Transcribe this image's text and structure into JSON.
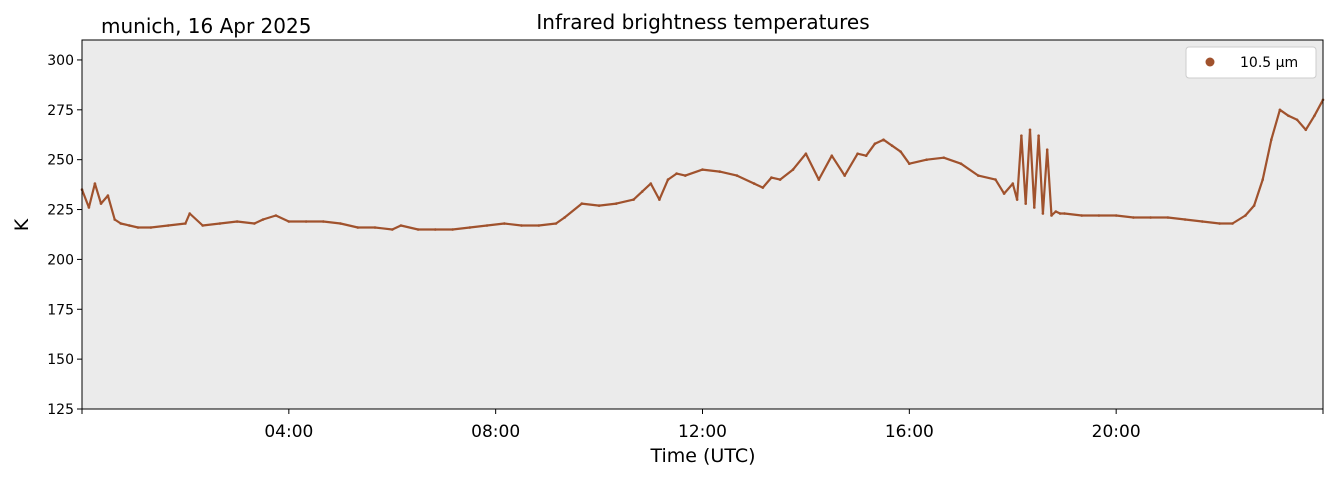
{
  "header": {
    "location_date": "munich, 16 Apr 2025"
  },
  "colors": {
    "series": "#a0522d",
    "plot_background": "#ebebeb"
  },
  "chart_data": {
    "type": "line",
    "title": "Infrared brightness temperatures",
    "xlabel": "Time (UTC)",
    "ylabel": "K",
    "xlim": [
      "00:00",
      "24:00"
    ],
    "ylim": [
      125,
      310
    ],
    "xticks": [
      "04:00",
      "08:00",
      "12:00",
      "16:00",
      "20:00"
    ],
    "yticks": [
      125,
      150,
      175,
      200,
      225,
      250,
      275,
      300
    ],
    "legend_position": "top-right",
    "grid": false,
    "series": [
      {
        "name": "10.5 µm",
        "x": [
          "00:00",
          "00:08",
          "00:15",
          "00:22",
          "00:30",
          "00:38",
          "00:45",
          "00:55",
          "01:05",
          "01:20",
          "01:40",
          "02:00",
          "02:05",
          "02:20",
          "02:40",
          "03:00",
          "03:20",
          "03:30",
          "03:45",
          "04:00",
          "04:20",
          "04:40",
          "05:00",
          "05:20",
          "05:40",
          "06:00",
          "06:10",
          "06:30",
          "06:50",
          "07:10",
          "07:30",
          "07:50",
          "08:10",
          "08:30",
          "08:50",
          "09:10",
          "09:20",
          "09:40",
          "10:00",
          "10:20",
          "10:40",
          "10:50",
          "11:00",
          "11:10",
          "11:20",
          "11:30",
          "11:40",
          "12:00",
          "12:20",
          "12:40",
          "13:00",
          "13:10",
          "13:20",
          "13:30",
          "13:45",
          "14:00",
          "14:15",
          "14:30",
          "14:45",
          "15:00",
          "15:10",
          "15:20",
          "15:30",
          "15:40",
          "15:50",
          "16:00",
          "16:20",
          "16:40",
          "17:00",
          "17:20",
          "17:40",
          "17:50",
          "18:00",
          "18:05",
          "18:10",
          "18:15",
          "18:20",
          "18:25",
          "18:30",
          "18:35",
          "18:40",
          "18:45",
          "18:50",
          "18:55",
          "19:00",
          "19:20",
          "19:40",
          "20:00",
          "20:20",
          "20:40",
          "21:00",
          "21:20",
          "21:40",
          "22:00",
          "22:15",
          "22:30",
          "22:40",
          "22:50",
          "23:00",
          "23:10",
          "23:20",
          "23:30",
          "23:40",
          "23:50",
          "24:00"
        ],
        "y": [
          235,
          226,
          238,
          228,
          232,
          220,
          218,
          217,
          216,
          216,
          217,
          218,
          223,
          217,
          218,
          219,
          218,
          220,
          222,
          219,
          219,
          219,
          218,
          216,
          216,
          215,
          217,
          215,
          215,
          215,
          216,
          217,
          218,
          217,
          217,
          218,
          221,
          228,
          227,
          228,
          230,
          234,
          238,
          230,
          240,
          243,
          242,
          245,
          244,
          242,
          238,
          236,
          241,
          240,
          245,
          253,
          240,
          252,
          242,
          253,
          252,
          258,
          260,
          257,
          254,
          248,
          250,
          251,
          248,
          242,
          240,
          233,
          238,
          230,
          262,
          228,
          265,
          226,
          262,
          223,
          255,
          222,
          224,
          223,
          223,
          222,
          222,
          222,
          221,
          221,
          221,
          220,
          219,
          218,
          218,
          222,
          227,
          240,
          260,
          275,
          272,
          270,
          265,
          272,
          280
        ]
      }
    ]
  }
}
